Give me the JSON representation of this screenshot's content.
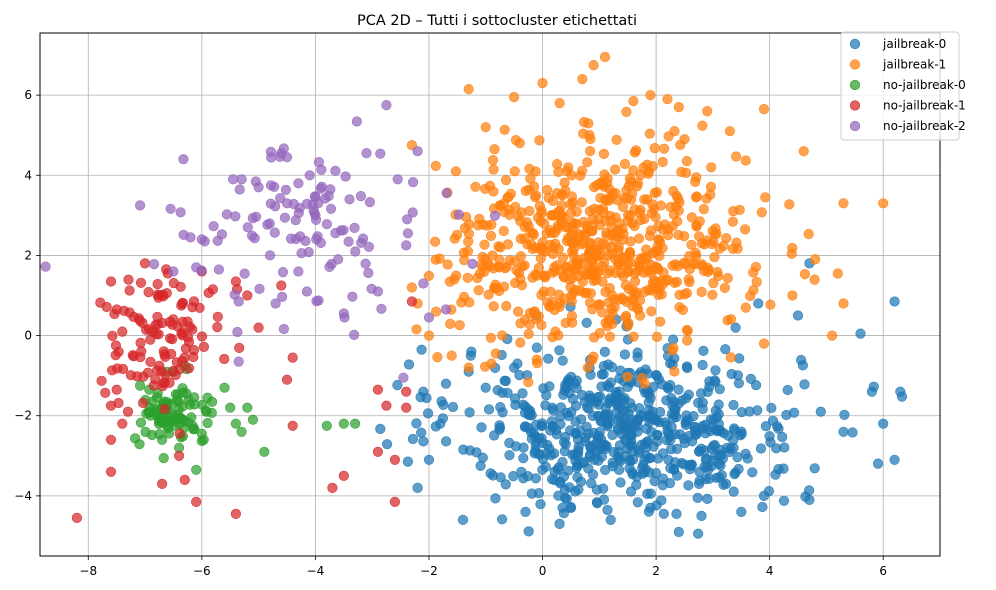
{
  "chart_data": {
    "type": "scatter",
    "title": "PCA 2D – Tutti i sottocluster etichettati",
    "xlabel": "",
    "ylabel": "",
    "xlim": [
      -8.85,
      7.0
    ],
    "ylim": [
      -5.5,
      7.55
    ],
    "xticks": [
      -8,
      -6,
      -4,
      -2,
      0,
      2,
      4,
      6
    ],
    "yticks": [
      -4,
      -2,
      0,
      2,
      4,
      6
    ],
    "grid": true,
    "legend_position": "top-right",
    "series": [
      {
        "name": "jailbreak-0",
        "color": "#1f77b4",
        "center": [
          1.5,
          -2.3
        ],
        "spread": [
          1.5,
          1.0
        ],
        "count": 620,
        "points": [
          [
            -1.8,
            -2.2
          ],
          [
            -2.1,
            -1.4
          ],
          [
            -2.2,
            -3.8
          ],
          [
            -2.0,
            -3.1
          ],
          [
            -1.4,
            -4.6
          ],
          [
            -0.3,
            -4.4
          ],
          [
            0.3,
            -4.7
          ],
          [
            0.6,
            -3.3
          ],
          [
            1.2,
            -4.6
          ],
          [
            2.4,
            -4.9
          ],
          [
            3.5,
            -4.4
          ],
          [
            4.7,
            -4.1
          ],
          [
            4.9,
            -1.9
          ],
          [
            5.3,
            -2.4
          ],
          [
            5.6,
            0.05
          ],
          [
            5.8,
            -1.4
          ],
          [
            6.0,
            -2.2
          ],
          [
            6.2,
            0.85
          ],
          [
            6.3,
            -1.4
          ],
          [
            6.2,
            -3.1
          ],
          [
            4.5,
            0.5
          ],
          [
            4.7,
            1.8
          ],
          [
            3.8,
            0.8
          ],
          [
            3.4,
            0.2
          ],
          [
            2.3,
            -0.1
          ],
          [
            -0.1,
            -0.3
          ],
          [
            -0.5,
            -0.8
          ],
          [
            -1.0,
            -1.3
          ],
          [
            -1.3,
            -0.9
          ],
          [
            -1.7,
            -1.2
          ],
          [
            0.5,
            -4.3
          ],
          [
            1.9,
            -4.3
          ],
          [
            2.8,
            -4.5
          ],
          [
            3.9,
            -4.0
          ]
        ]
      },
      {
        "name": "jailbreak-1",
        "color": "#ff7f0e",
        "center": [
          1.0,
          2.2
        ],
        "spread": [
          1.3,
          1.2
        ],
        "count": 660,
        "points": [
          [
            1.1,
            6.95
          ],
          [
            0.9,
            6.75
          ],
          [
            0.7,
            6.4
          ],
          [
            0.0,
            6.3
          ],
          [
            -1.3,
            6.15
          ],
          [
            -0.5,
            5.95
          ],
          [
            0.3,
            5.8
          ],
          [
            1.6,
            5.85
          ],
          [
            1.9,
            6.0
          ],
          [
            2.2,
            5.9
          ],
          [
            2.4,
            5.7
          ],
          [
            2.9,
            5.6
          ],
          [
            3.9,
            5.65
          ],
          [
            4.6,
            4.6
          ],
          [
            5.3,
            3.3
          ],
          [
            6.0,
            3.3
          ],
          [
            4.8,
            1.9
          ],
          [
            5.2,
            1.55
          ],
          [
            5.3,
            0.8
          ],
          [
            5.1,
            0.0
          ],
          [
            -2.3,
            4.75
          ],
          [
            -2.3,
            1.2
          ],
          [
            -2.2,
            0.8
          ],
          [
            -2.0,
            0.0
          ],
          [
            -1.6,
            -0.5
          ],
          [
            -1.3,
            -0.8
          ],
          [
            -0.9,
            -0.7
          ],
          [
            -0.1,
            -0.6
          ],
          [
            0.8,
            -0.8
          ],
          [
            1.8,
            -1.2
          ],
          [
            3.9,
            -0.2
          ],
          [
            4.4,
            1.0
          ],
          [
            3.3,
            5.1
          ],
          [
            2.5,
            4.9
          ],
          [
            -1.0,
            5.2
          ],
          [
            -0.4,
            4.8
          ]
        ]
      },
      {
        "name": "no-jailbreak-0",
        "color": "#2ca02c",
        "center": [
          -6.5,
          -2.0
        ],
        "spread": [
          0.35,
          0.35
        ],
        "count": 85,
        "points": [
          [
            -6.3,
            -0.75
          ],
          [
            -6.5,
            -0.9
          ],
          [
            -5.6,
            -1.3
          ],
          [
            -5.9,
            -1.55
          ],
          [
            -5.5,
            -1.8
          ],
          [
            -5.2,
            -1.8
          ],
          [
            -5.1,
            -2.1
          ],
          [
            -5.4,
            -2.2
          ],
          [
            -5.3,
            -2.4
          ],
          [
            -6.0,
            -2.45
          ],
          [
            -6.1,
            -3.35
          ],
          [
            -4.9,
            -2.9
          ],
          [
            -3.8,
            -2.25
          ],
          [
            -3.5,
            -2.2
          ],
          [
            -3.3,
            -2.2
          ],
          [
            -6.9,
            -2.0
          ],
          [
            -6.8,
            -1.85
          ],
          [
            -6.7,
            -2.6
          ],
          [
            -6.4,
            -2.8
          ],
          [
            -6.6,
            -2.25
          ]
        ]
      },
      {
        "name": "no-jailbreak-1",
        "color": "#d62728",
        "center": [
          -6.7,
          0.0
        ],
        "spread": [
          0.55,
          0.8
        ],
        "count": 110,
        "points": [
          [
            -8.2,
            -4.55
          ],
          [
            -7.6,
            -3.4
          ],
          [
            -7.6,
            -2.6
          ],
          [
            -7.6,
            -1.75
          ],
          [
            -7.5,
            -1.35
          ],
          [
            -7.4,
            -2.2
          ],
          [
            -7.3,
            -1.9
          ],
          [
            -7.6,
            1.35
          ],
          [
            -7.5,
            0.65
          ],
          [
            -7.4,
            0.1
          ],
          [
            -7.0,
            1.8
          ],
          [
            -6.6,
            1.55
          ],
          [
            -6.4,
            -3.0
          ],
          [
            -6.1,
            -4.15
          ],
          [
            -5.4,
            -4.45
          ],
          [
            -6.7,
            -3.7
          ],
          [
            -6.3,
            -3.6
          ],
          [
            -4.4,
            -0.55
          ],
          [
            -4.5,
            -1.1
          ],
          [
            -4.4,
            -2.25
          ],
          [
            -3.7,
            -3.8
          ],
          [
            -3.5,
            -3.5
          ],
          [
            -2.9,
            -2.9
          ],
          [
            -2.9,
            -1.35
          ],
          [
            -2.6,
            -3.1
          ],
          [
            -2.4,
            -1.4
          ],
          [
            -2.6,
            -4.15
          ],
          [
            -2.4,
            -1.8
          ],
          [
            -2.3,
            0.85
          ],
          [
            -2.75,
            -1.75
          ],
          [
            -5.2,
            1.0
          ],
          [
            -5.4,
            1.35
          ],
          [
            -5.0,
            0.2
          ],
          [
            -4.6,
            1.25
          ],
          [
            -6.0,
            1.6
          ],
          [
            -6.25,
            0.35
          ]
        ]
      },
      {
        "name": "no-jailbreak-2",
        "color": "#9467bd",
        "center": [
          -4.2,
          2.6
        ],
        "spread": [
          1.1,
          1.0
        ],
        "count": 105,
        "points": [
          [
            -2.75,
            5.75
          ],
          [
            -3.1,
            4.55
          ],
          [
            -2.2,
            4.6
          ],
          [
            -4.6,
            4.55
          ],
          [
            -4.5,
            4.45
          ],
          [
            -5.3,
            3.9
          ],
          [
            -5.45,
            3.9
          ],
          [
            -6.2,
            2.45
          ],
          [
            -6.0,
            2.4
          ],
          [
            -6.5,
            1.6
          ],
          [
            -6.1,
            1.7
          ],
          [
            -5.35,
            0.85
          ],
          [
            -5.35,
            -0.65
          ],
          [
            -4.7,
            0.8
          ],
          [
            -4.3,
            1.6
          ],
          [
            -4.15,
            1.1
          ],
          [
            -3.5,
            0.55
          ],
          [
            -2.9,
            1.1
          ],
          [
            -2.0,
            0.45
          ],
          [
            -2.45,
            -1.05
          ],
          [
            -2.4,
            2.25
          ],
          [
            -2.55,
            3.9
          ],
          [
            -3.4,
            3.4
          ],
          [
            -3.6,
            1.9
          ],
          [
            -4.0,
            3.0
          ],
          [
            -4.1,
            4.0
          ],
          [
            -4.5,
            3.3
          ],
          [
            -5.0,
            3.7
          ],
          [
            -4.8,
            2.0
          ],
          [
            -5.7,
            1.65
          ],
          [
            -1.7,
            0.65
          ],
          [
            -2.1,
            1.3
          ],
          [
            -5.95,
            2.35
          ],
          [
            -4.3,
            3.8
          ]
        ]
      }
    ]
  }
}
